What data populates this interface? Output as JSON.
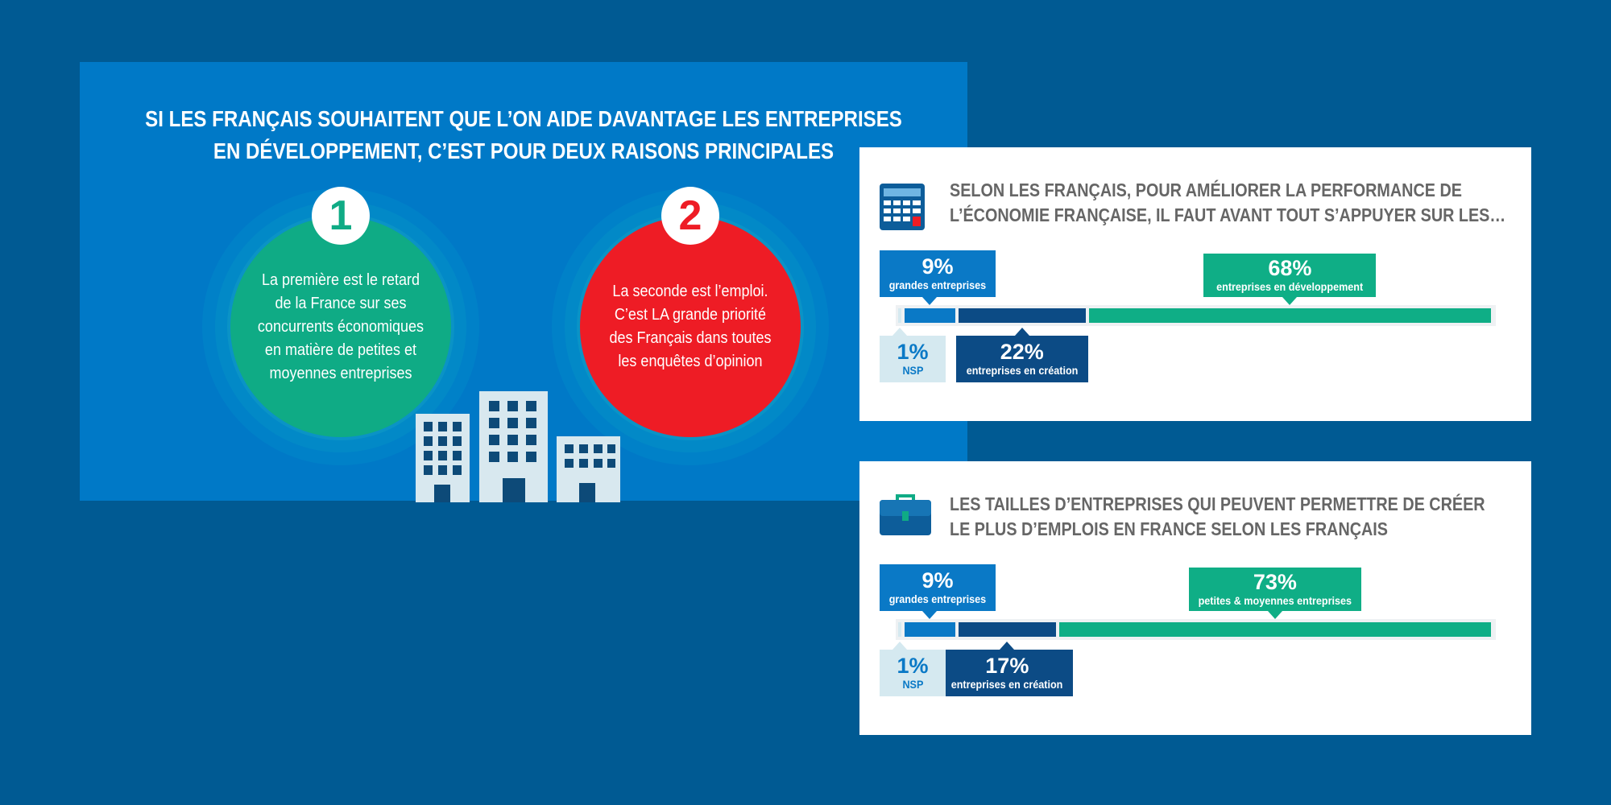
{
  "left_panel": {
    "title_line1": "SI LES FRANÇAIS SOUHAITENT QUE L’ON AIDE DAVANTAGE LES ENTREPRISES",
    "title_line2": "EN DÉVELOPPEMENT, C’EST POUR DEUX RAISONS PRINCIPALES",
    "reasons": [
      {
        "number": "1",
        "text": "La première est le retard de la France sur ses concurrents économiques en matière de petites et moyennes entreprises",
        "color": "#0fab85"
      },
      {
        "number": "2",
        "text": "La seconde est l’emploi. C’est LA grande priorité des Français dans toutes les enquêtes d’opinion",
        "color": "#ee1c25"
      }
    ]
  },
  "colors": {
    "background": "#005a93",
    "panel": "#0079c7",
    "nsp": "#d5e9f0",
    "grandes": "#0a79c6",
    "creation": "#0c4b85",
    "developpement": "#0fae86"
  },
  "cards": [
    {
      "icon": "calculator-icon",
      "title_line1": "SELON LES FRANÇAIS, POUR AMÉLIORER LA PERFORMANCE DE",
      "title_line2": "L’ÉCONOMIE FRANÇAISE, IL FAUT AVANT TOUT S’APPUYER SUR LES…",
      "labels": {
        "grandes": {
          "pct": "9%",
          "cap": "grandes entreprises"
        },
        "main": {
          "pct": "68%",
          "cap": "entreprises en développement"
        },
        "nsp": {
          "pct": "1%",
          "cap": "NSP"
        },
        "creation": {
          "pct": "22%",
          "cap": "entreprises en création"
        }
      }
    },
    {
      "icon": "briefcase-icon",
      "title_line1": "LES TAILLES D’ENTREPRISES QUI PEUVENT PERMETTRE DE CRÉER",
      "title_line2": "LE PLUS D’EMPLOIS EN FRANCE SELON LES FRANÇAIS",
      "labels": {
        "grandes": {
          "pct": "9%",
          "cap": "grandes entreprises"
        },
        "main": {
          "pct": "73%",
          "cap": "petites & moyennes entreprises"
        },
        "nsp": {
          "pct": "1%",
          "cap": "NSP"
        },
        "creation": {
          "pct": "17%",
          "cap": "entreprises en création"
        }
      }
    }
  ],
  "chart_data": [
    {
      "type": "bar",
      "title": "SELON LES FRANÇAIS, POUR AMÉLIORER LA PERFORMANCE DE L’ÉCONOMIE FRANÇAISE, IL FAUT AVANT TOUT S’APPUYER SUR LES…",
      "categories": [
        "NSP",
        "grandes entreprises",
        "entreprises en création",
        "entreprises en développement"
      ],
      "values": [
        1,
        9,
        22,
        68
      ],
      "unit": "%",
      "stacked": true
    },
    {
      "type": "bar",
      "title": "LES TAILLES D’ENTREPRISES QUI PEUVENT PERMETTRE DE CRÉER LE PLUS D’EMPLOIS EN FRANCE SELON LES FRANÇAIS",
      "categories": [
        "NSP",
        "grandes entreprises",
        "entreprises en création",
        "petites & moyennes entreprises"
      ],
      "values": [
        1,
        9,
        17,
        73
      ],
      "unit": "%",
      "stacked": true
    }
  ]
}
